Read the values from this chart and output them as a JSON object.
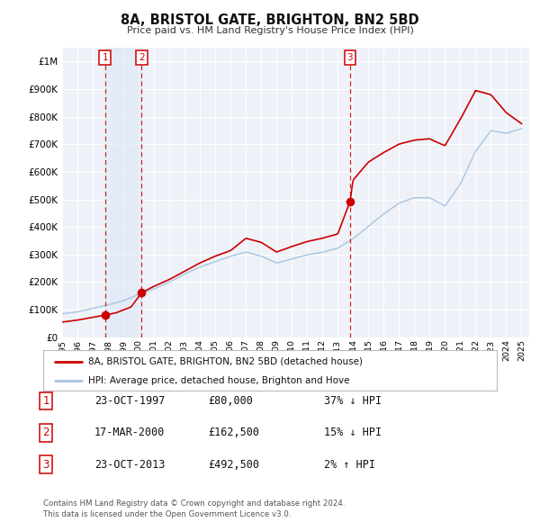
{
  "title": "8A, BRISTOL GATE, BRIGHTON, BN2 5BD",
  "subtitle": "Price paid vs. HM Land Registry's House Price Index (HPI)",
  "background_color": "#ffffff",
  "plot_bg_color": "#eef2f8",
  "grid_color": "#ffffff",
  "legend_label_red": "8A, BRISTOL GATE, BRIGHTON, BN2 5BD (detached house)",
  "legend_label_blue": "HPI: Average price, detached house, Brighton and Hove",
  "transactions": [
    {
      "num": 1,
      "date": "23-OCT-1997",
      "price": 80000,
      "pct": "37%",
      "dir": "↓",
      "x_year": 1997.8
    },
    {
      "num": 2,
      "date": "17-MAR-2000",
      "price": 162500,
      "pct": "15%",
      "dir": "↓",
      "x_year": 2000.2
    },
    {
      "num": 3,
      "date": "23-OCT-2013",
      "price": 492500,
      "pct": "2%",
      "dir": "↑",
      "x_year": 2013.8
    }
  ],
  "footer_line1": "Contains HM Land Registry data © Crown copyright and database right 2024.",
  "footer_line2": "This data is licensed under the Open Government Licence v3.0.",
  "ylim": [
    0,
    1050000
  ],
  "yticks": [
    0,
    100000,
    200000,
    300000,
    400000,
    500000,
    600000,
    700000,
    800000,
    900000,
    1000000
  ],
  "ytick_labels": [
    "£0",
    "£100K",
    "£200K",
    "£300K",
    "£400K",
    "£500K",
    "£600K",
    "£700K",
    "£800K",
    "£900K",
    "£1M"
  ],
  "xlim_start": 1995.0,
  "xlim_end": 2025.5,
  "xtick_years": [
    1995,
    1996,
    1997,
    1998,
    1999,
    2000,
    2001,
    2002,
    2003,
    2004,
    2005,
    2006,
    2007,
    2008,
    2009,
    2010,
    2011,
    2012,
    2013,
    2014,
    2015,
    2016,
    2017,
    2018,
    2019,
    2020,
    2021,
    2022,
    2023,
    2024,
    2025
  ],
  "hpi_color": "#a8c4e0",
  "price_color": "#cc0000",
  "dot_color": "#cc0000",
  "vline_color": "#cc0000",
  "shade_color": "#dce8f5",
  "label_box_color": "#cc0000",
  "hpi_anchors_x": [
    1995,
    1996,
    1997,
    1998,
    1999,
    2000,
    2001,
    2002,
    2003,
    2004,
    2005,
    2006,
    2007,
    2008,
    2009,
    2010,
    2011,
    2012,
    2013,
    2014,
    2015,
    2016,
    2017,
    2018,
    2019,
    2020,
    2021,
    2022,
    2023,
    2024,
    2025
  ],
  "hpi_anchors_y": [
    85000,
    92000,
    105000,
    118000,
    133000,
    155000,
    175000,
    200000,
    230000,
    255000,
    275000,
    295000,
    310000,
    295000,
    270000,
    285000,
    300000,
    310000,
    325000,
    360000,
    405000,
    450000,
    490000,
    510000,
    510000,
    480000,
    560000,
    680000,
    755000,
    745000,
    760000
  ],
  "price_anchors_x": [
    1995,
    1996,
    1997,
    1997.8,
    1998.5,
    1999.5,
    2000.2,
    2001,
    2002,
    2003,
    2004,
    2005,
    2006,
    2007,
    2008,
    2009,
    2010,
    2011,
    2012,
    2013,
    2013.8,
    2014,
    2015,
    2016,
    2017,
    2018,
    2019,
    2020,
    2021,
    2022,
    2023,
    2024,
    2025
  ],
  "price_anchors_y": [
    55000,
    62000,
    72000,
    80000,
    88000,
    110000,
    162500,
    185000,
    210000,
    240000,
    270000,
    295000,
    315000,
    360000,
    345000,
    310000,
    330000,
    348000,
    360000,
    375000,
    492500,
    570000,
    635000,
    670000,
    700000,
    715000,
    720000,
    695000,
    790000,
    895000,
    880000,
    815000,
    775000
  ]
}
